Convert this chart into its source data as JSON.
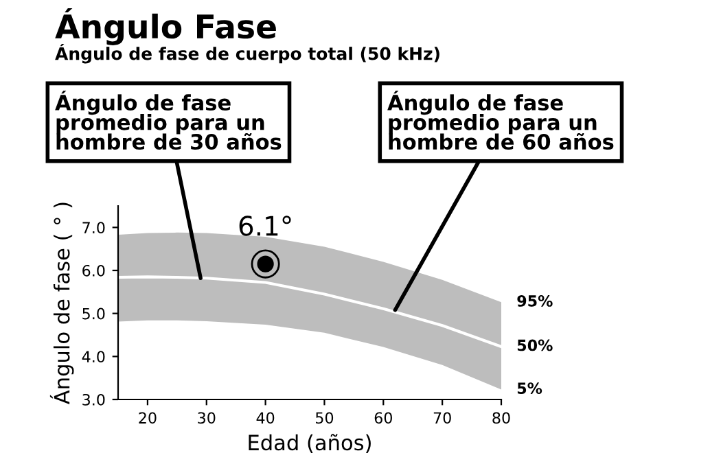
{
  "chart_data": {
    "type": "line",
    "title": "Ángulo Fase",
    "subtitle": "Ángulo de fase de cuerpo total (50 kHz)",
    "xlabel": "Edad (años)",
    "ylabel": "Ángulo de fase ( ° )",
    "x": [
      15,
      20,
      25,
      30,
      40,
      50,
      60,
      70,
      80
    ],
    "series": [
      {
        "color": "#ffffff",
        "values": [
          5.84,
          5.85,
          5.84,
          5.82,
          5.72,
          5.45,
          5.11,
          4.72,
          4.23
        ],
        "lower": [
          4.81,
          4.84,
          4.84,
          4.82,
          4.74,
          4.55,
          4.22,
          3.8,
          3.23
        ],
        "upper": [
          6.83,
          6.87,
          6.88,
          6.87,
          6.78,
          6.55,
          6.2,
          5.78,
          5.26
        ]
      },
      {
        "type": "scatter",
        "marker": "circle",
        "color": "#000000",
        "x": [
          40
        ],
        "values": [
          6.15
        ],
        "value_labels": [
          "6.1°"
        ]
      }
    ],
    "xlim": [
      15,
      80
    ],
    "xticks": [
      20,
      30,
      40,
      50,
      60,
      70,
      80
    ],
    "ylim": [
      3,
      7.5
    ],
    "yticks": [
      {
        "value": 3,
        "label": "3.0"
      },
      {
        "value": 4,
        "label": "4.0"
      },
      {
        "value": 5,
        "label": "5.0"
      },
      {
        "value": 6,
        "label": "6.0"
      },
      {
        "value": 7,
        "label": "7.0"
      }
    ],
    "grid": false,
    "annotations": [
      {
        "text": "Ángulo de fase\npromedio para un\nhombre de 30 años",
        "x": 29,
        "y": 5.82
      },
      {
        "text": "Ángulo de fase\npromedio para un\nhombre de 60 años",
        "x": 62,
        "y": 5.08
      },
      {
        "text": "95%",
        "x": 80,
        "y": 5.26
      },
      {
        "text": "50%",
        "x": 80,
        "y": 4.23
      },
      {
        "text": "5%",
        "x": 80,
        "y": 3.23
      }
    ]
  }
}
